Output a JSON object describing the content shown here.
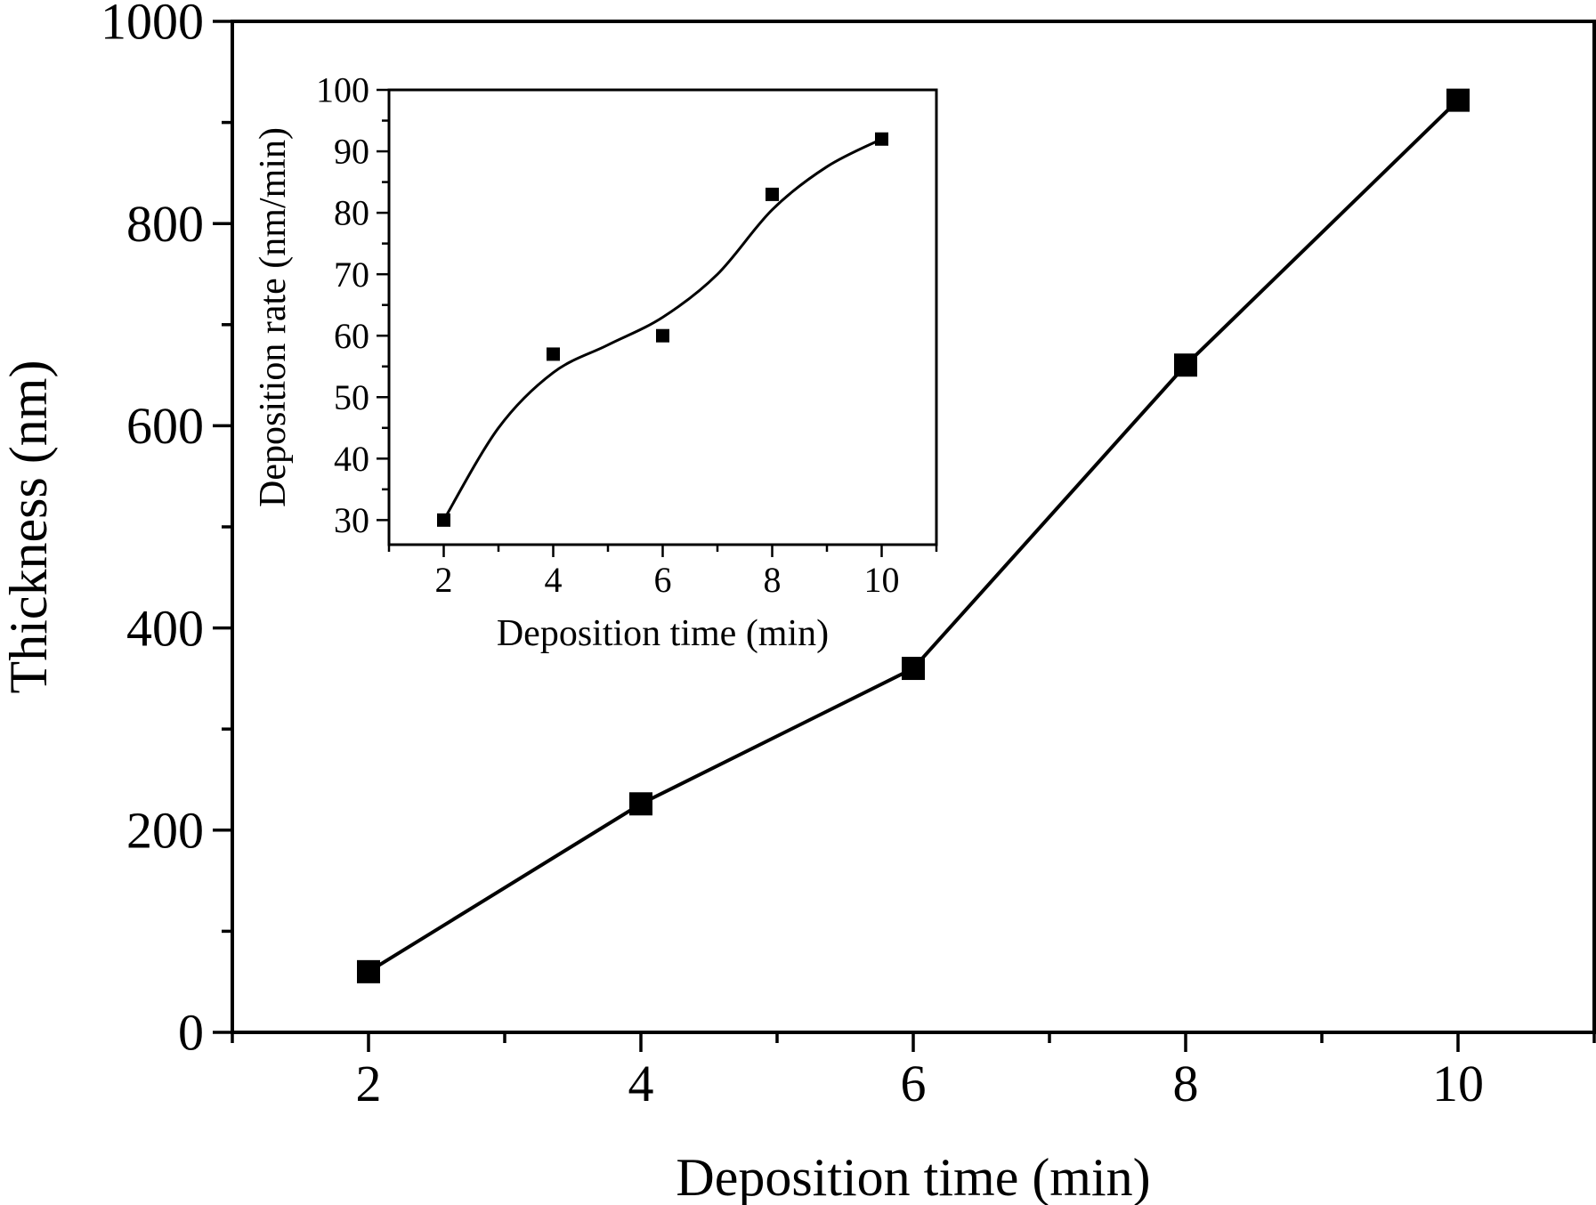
{
  "chart_data": [
    {
      "type": "line",
      "role": "main",
      "xlabel": "Deposition time (min)",
      "ylabel": "Thickness (nm)",
      "xlim": [
        1,
        11
      ],
      "ylim": [
        0,
        1000
      ],
      "x_ticks": [
        2,
        4,
        6,
        8,
        10
      ],
      "y_ticks": [
        0,
        200,
        400,
        600,
        800,
        1000
      ],
      "marker": "square",
      "line_color": "#000000",
      "series": [
        {
          "x": [
            2,
            4,
            6,
            8,
            10
          ],
          "values": [
            60,
            226,
            360,
            660,
            922
          ]
        }
      ]
    },
    {
      "type": "scatter",
      "role": "inset",
      "xlabel": "Deposition time (min)",
      "ylabel": "Deposition rate (nm/min)",
      "xlim": [
        1,
        11
      ],
      "ylim": [
        26,
        100
      ],
      "x_ticks": [
        2,
        4,
        6,
        8,
        10
      ],
      "y_ticks": [
        30,
        40,
        50,
        60,
        70,
        80,
        90,
        100
      ],
      "marker": "square",
      "fit_line": "smooth",
      "series": [
        {
          "x": [
            2,
            4,
            6,
            8,
            10
          ],
          "values": [
            30,
            57,
            60,
            83,
            92
          ]
        }
      ],
      "fit": {
        "x": [
          2,
          3,
          4,
          5,
          6,
          7,
          8,
          9,
          10
        ],
        "values": [
          30,
          45,
          54,
          58.5,
          63,
          70,
          80.5,
          87.5,
          92
        ]
      }
    }
  ]
}
